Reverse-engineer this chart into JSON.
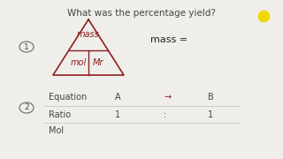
{
  "bg_color": "#f0eeea",
  "title": "What was the percentage yield?",
  "title_fontsize": 7.5,
  "triangle_color": "#8B2020",
  "mass_label": "mass",
  "mol_label": "mol",
  "mr_label": "Mr",
  "mass_eq_text": "mass =",
  "mass_eq_fontsize": 8.0,
  "dot_color": "#f0d800",
  "dot_size": 80,
  "table_header": [
    "Equation",
    "A",
    "→",
    "B"
  ],
  "table_row1": [
    "Ratio",
    "1",
    ":",
    "1"
  ],
  "table_row2": [
    "Mol",
    "",
    "",
    ""
  ],
  "table_fontsize": 7.0,
  "line_color": "#cccccc",
  "arrow_color": "#8B2020",
  "text_color": "#444444"
}
